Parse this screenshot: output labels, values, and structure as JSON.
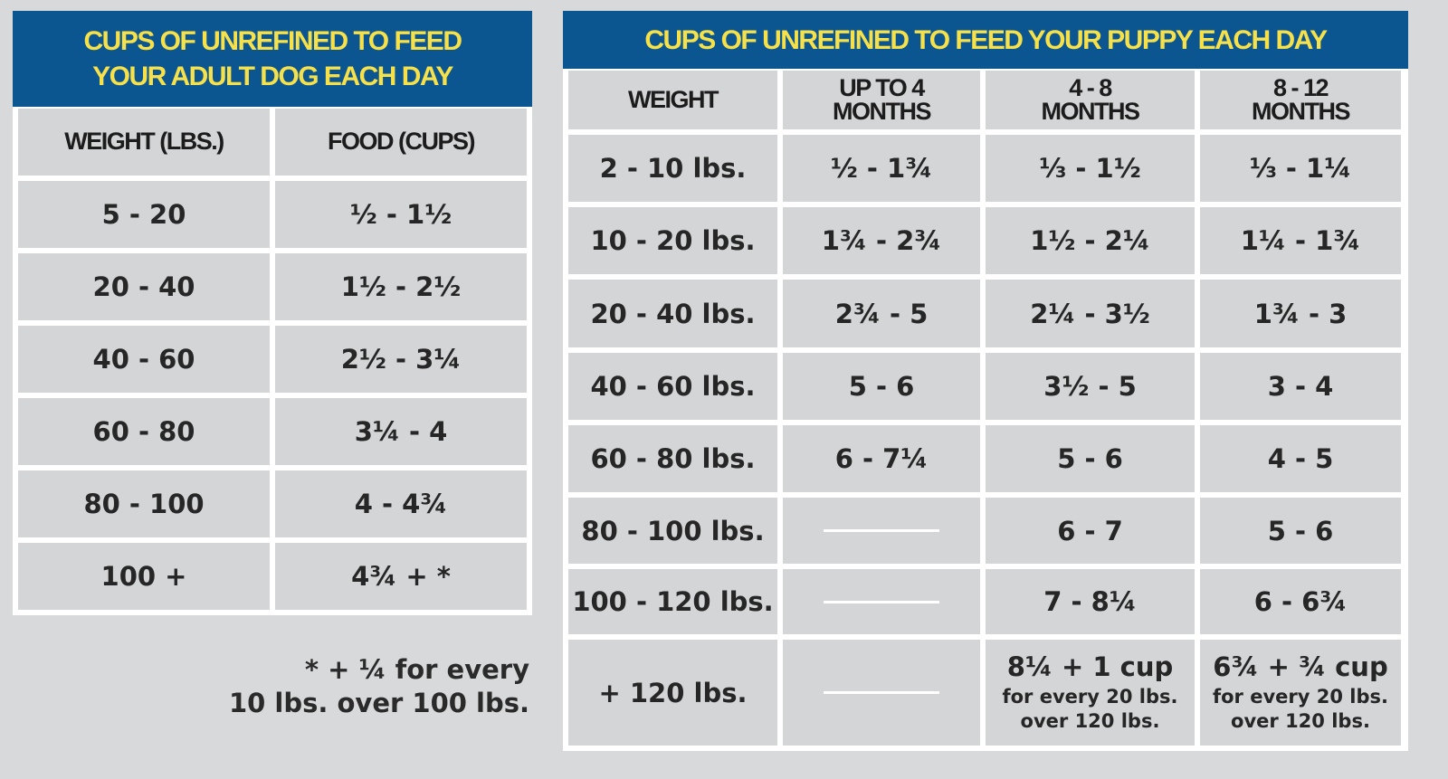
{
  "adult": {
    "title_line1": "CUPS OF UNREFINED TO FEED",
    "title_line2": "YOUR ADULT DOG EACH DAY",
    "headers": [
      "WEIGHT (LBS.)",
      "FOOD (CUPS)"
    ],
    "rows": [
      [
        "5 - 20",
        "½ - 1½"
      ],
      [
        "20 - 40",
        "1½ - 2½"
      ],
      [
        "40 - 60",
        "2½ - 3¼"
      ],
      [
        "60 - 80",
        "3¼ - 4"
      ],
      [
        "80 - 100",
        "4 - 4¾"
      ],
      [
        "100 +",
        "4¾ + *"
      ]
    ],
    "footnote_line1": "* + ¼ for every",
    "footnote_line2": "10 lbs. over 100 lbs."
  },
  "puppy": {
    "title": "CUPS OF UNREFINED TO FEED YOUR PUPPY EACH DAY",
    "headers": [
      [
        "WEIGHT"
      ],
      [
        "UP TO 4",
        "MONTHS"
      ],
      [
        "4 - 8",
        "MONTHS"
      ],
      [
        "8 - 12",
        "MONTHS"
      ]
    ],
    "rows": [
      [
        "2 - 10 lbs.",
        "½ - 1¾",
        "⅓ - 1½",
        "⅓ - 1¼"
      ],
      [
        "10 - 20 lbs.",
        "1¾ - 2¾",
        "1½ - 2¼",
        "1¼ - 1¾"
      ],
      [
        "20 - 40 lbs.",
        "2¾ - 5",
        "2¼ - 3½",
        "1¾ - 3"
      ],
      [
        "40 - 60 lbs.",
        "5 - 6",
        "3½ - 5",
        "3 - 4"
      ],
      [
        "60 - 80 lbs.",
        "6 - 7¼",
        "5 - 6",
        "4 - 5"
      ],
      [
        "80 - 100 lbs.",
        "",
        "6 - 7",
        "5 - 6"
      ],
      [
        "100 - 120 lbs.",
        "",
        "7 - 8¼",
        "6 - 6¾"
      ]
    ],
    "last_row": {
      "weight": "+ 120 lbs.",
      "col2": [
        "8¼ + 1 cup",
        "for every 20 lbs.",
        "over 120 lbs."
      ],
      "col3": [
        "6¾ + ¾ cup",
        "for every 20 lbs.",
        "over 120 lbs."
      ]
    }
  },
  "colors": {
    "header_bg": "#0b5590",
    "header_text": "#f6e14b",
    "cell_bg": "#d4d5d7",
    "page_bg": "#d8d9db"
  }
}
